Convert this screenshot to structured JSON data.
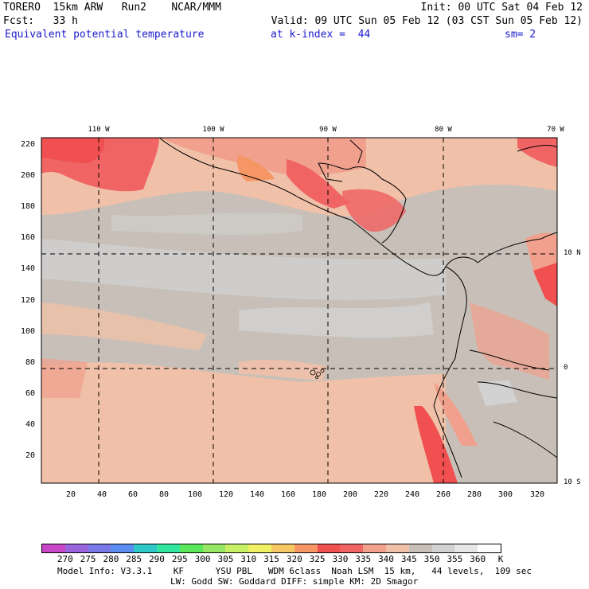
{
  "header": {
    "line1_left": "TORERO  15km ARW   Run2    NCAR/MMM",
    "line1_right": "Init: 00 UTC Sat 04 Feb 12",
    "line2_left": "Fcst:   33 h",
    "line2_right": "Valid: 09 UTC Sun 05 Feb 12 (03 CST Sun 05 Feb 12)",
    "field": "Equivalent potential temperature",
    "level": "at k-index =  44",
    "smoothing": "sm= 2"
  },
  "axes": {
    "y_ticks": [
      "220",
      "200",
      "180",
      "160",
      "140",
      "120",
      "100",
      "80",
      "60",
      "40",
      "20"
    ],
    "x_ticks": [
      "20",
      "40",
      "60",
      "80",
      "100",
      "120",
      "140",
      "160",
      "180",
      "200",
      "220",
      "240",
      "260",
      "280",
      "300",
      "320"
    ],
    "lon_labels": [
      "110 W",
      "100 W",
      "90 W",
      "80 W",
      "70 W"
    ],
    "lat_labels": [
      "10 N",
      "0",
      "10 S"
    ]
  },
  "colorbar": {
    "colors": [
      "#c846c8",
      "#9a64dc",
      "#7878e6",
      "#5a8cf0",
      "#2ec8c8",
      "#32e6a0",
      "#5ae65a",
      "#96e664",
      "#c8f064",
      "#f0f064",
      "#f5c864",
      "#f59664",
      "#f05050",
      "#f06464",
      "#f0a08c",
      "#f0c0a8",
      "#c8c0b8",
      "#d2d2d2",
      "#e6e6e6",
      "#ffffff"
    ],
    "labels": [
      "270",
      "275",
      "280",
      "285",
      "290",
      "295",
      "300",
      "305",
      "310",
      "315",
      "320",
      "325",
      "330",
      "335",
      "340",
      "345",
      "350",
      "355",
      "360",
      "K"
    ]
  },
  "footer": {
    "line1": "Model Info: V3.3.1    KF      YSU PBL   WDM 6class  Noah LSM  15 km,   44 levels,  109 sec",
    "line2": "LW: Godd SW: Goddard DIFF: simple KM: 2D Smagor"
  }
}
